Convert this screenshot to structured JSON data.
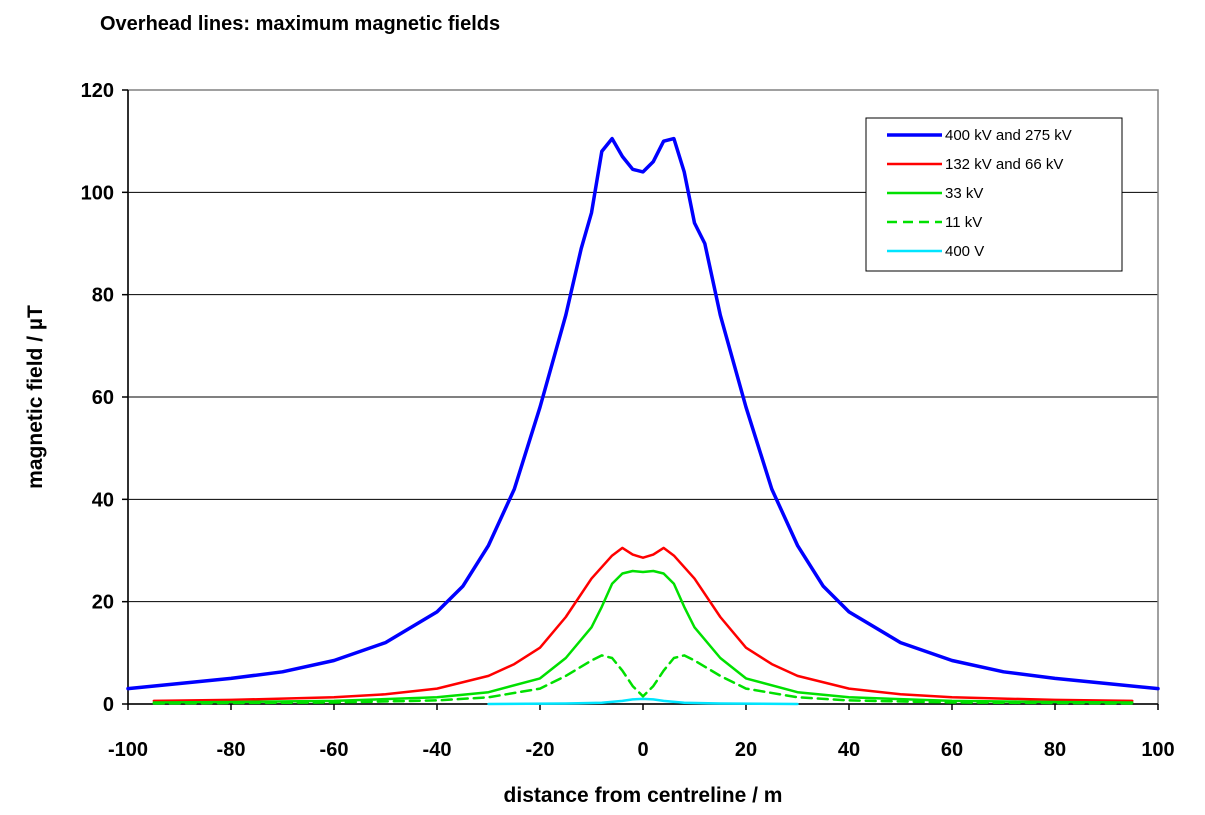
{
  "chart_data": {
    "type": "line",
    "title": "Overhead lines: maximum magnetic fields",
    "xlabel": "distance from centreline / m",
    "ylabel": "magnetic field / µT",
    "xlim": [
      -100,
      100
    ],
    "ylim": [
      0,
      120
    ],
    "xticks": [
      -100,
      -80,
      -60,
      -40,
      -20,
      0,
      20,
      40,
      60,
      80,
      100
    ],
    "yticks": [
      0,
      20,
      40,
      60,
      80,
      100,
      120
    ],
    "grid": "horizontal",
    "legend_position": "top-right",
    "series": [
      {
        "name": "400 kV and 275 kV",
        "color": "#0000ff",
        "dash": "solid",
        "x": [
          -100,
          -90,
          -80,
          -70,
          -60,
          -50,
          -40,
          -35,
          -30,
          -25,
          -20,
          -15,
          -12,
          -10,
          -8,
          -6,
          -4,
          -2,
          0,
          2,
          4,
          6,
          8,
          10,
          12,
          15,
          20,
          25,
          30,
          35,
          40,
          50,
          60,
          70,
          80,
          90,
          100
        ],
        "y": [
          3,
          4,
          5,
          6.3,
          8.5,
          12,
          18,
          23,
          31,
          42,
          58,
          76,
          89,
          96,
          108,
          110.5,
          107,
          104.5,
          104,
          106,
          110,
          110.5,
          104,
          94,
          90,
          76,
          58,
          42,
          31,
          23,
          18,
          12,
          8.5,
          6.3,
          5,
          4,
          3
        ]
      },
      {
        "name": "132 kV and 66 kV",
        "color": "#ff0000",
        "dash": "solid",
        "x": [
          -95,
          -80,
          -60,
          -50,
          -40,
          -30,
          -25,
          -20,
          -15,
          -10,
          -6,
          -4,
          -2,
          0,
          2,
          4,
          6,
          10,
          15,
          20,
          25,
          30,
          40,
          50,
          60,
          80,
          95
        ],
        "y": [
          0.6,
          0.8,
          1.3,
          1.9,
          3,
          5.5,
          7.8,
          11,
          17,
          24.5,
          29,
          30.5,
          29.2,
          28.6,
          29.2,
          30.5,
          29,
          24.5,
          17,
          11,
          7.8,
          5.5,
          3,
          1.9,
          1.3,
          0.8,
          0.6
        ]
      },
      {
        "name": "33 kV",
        "color": "#00e000",
        "dash": "solid",
        "x": [
          -95,
          -80,
          -60,
          -40,
          -30,
          -20,
          -15,
          -10,
          -8,
          -6,
          -4,
          -2,
          0,
          2,
          4,
          6,
          8,
          10,
          15,
          20,
          30,
          40,
          60,
          80,
          95
        ],
        "y": [
          0.3,
          0.4,
          0.6,
          1.3,
          2.3,
          5,
          9,
          15,
          19,
          23.5,
          25.5,
          26,
          25.8,
          26,
          25.5,
          23.5,
          19,
          15,
          9,
          5,
          2.3,
          1.3,
          0.6,
          0.4,
          0.3
        ]
      },
      {
        "name": "11 kV",
        "color": "#00e000",
        "dash": "dashed",
        "x": [
          -95,
          -80,
          -60,
          -40,
          -30,
          -20,
          -15,
          -10,
          -8,
          -6,
          -4,
          -2,
          0,
          2,
          4,
          6,
          8,
          10,
          15,
          20,
          30,
          40,
          60,
          80,
          95
        ],
        "y": [
          0.1,
          0.2,
          0.3,
          0.7,
          1.3,
          3,
          5.5,
          8.5,
          9.5,
          9,
          6.5,
          3.5,
          1.5,
          3.5,
          6.5,
          9,
          9.5,
          8.5,
          5.5,
          3,
          1.3,
          0.7,
          0.3,
          0.2,
          0.1
        ]
      },
      {
        "name": "400 V",
        "color": "#00e5ff",
        "dash": "solid",
        "x": [
          -30,
          -15,
          -8,
          -4,
          -2,
          0,
          2,
          4,
          8,
          15,
          30
        ],
        "y": [
          0,
          0.1,
          0.25,
          0.6,
          0.9,
          1.0,
          0.9,
          0.6,
          0.25,
          0.1,
          0
        ]
      }
    ]
  }
}
